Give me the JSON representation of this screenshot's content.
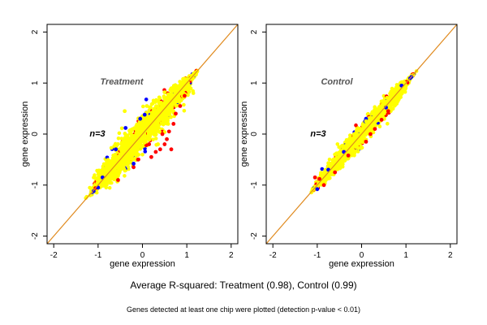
{
  "figure": {
    "caption": "Average R-squared: Treatment (0.98), Control (0.99)",
    "note": "Genes detected at least one chip were plotted (detection p-value < 0.01)"
  },
  "colors": {
    "reference_line": "#e08a1e",
    "point_main": "#ffff00",
    "point_red": "#ff0000",
    "point_blue": "#0000ff",
    "panel_label": "#555555",
    "axis": "#000000"
  },
  "chart_data": [
    {
      "type": "scatter",
      "title": "Treatment",
      "annotation": "n=3",
      "xlabel": "gene expression",
      "ylabel": "gene expression",
      "xlim": [
        -2.15,
        2.15
      ],
      "ylim": [
        -2.15,
        2.15
      ],
      "xticks": [
        -2,
        -1,
        0,
        1,
        2
      ],
      "yticks": [
        -2,
        -1,
        0,
        1,
        2
      ],
      "reference_line": {
        "slope": 1,
        "intercept": 0
      },
      "cloud": {
        "x_range": [
          -1.15,
          1.2
        ],
        "band_width": 0.42,
        "r_squared": 0.98
      },
      "series": [
        {
          "color_key": "point_red",
          "points": [
            [
              0.55,
              -0.1
            ],
            [
              0.6,
              0.05
            ],
            [
              0.4,
              -0.3
            ],
            [
              0.2,
              -0.45
            ],
            [
              0.5,
              -0.2
            ],
            [
              0.7,
              0.2
            ],
            [
              -0.2,
              -0.65
            ],
            [
              0.3,
              -0.35
            ],
            [
              0.65,
              -0.3
            ],
            [
              0.15,
              -0.2
            ],
            [
              -0.55,
              -0.9
            ],
            [
              0.75,
              0.4
            ],
            [
              0.45,
              0.0
            ],
            [
              -0.1,
              -0.5
            ],
            [
              0.85,
              0.55
            ],
            [
              0.95,
              0.75
            ]
          ]
        },
        {
          "color_key": "point_blue",
          "points": [
            [
              -0.38,
              0.12
            ],
            [
              -1.1,
              -1.12
            ],
            [
              -0.9,
              -0.85
            ],
            [
              -0.2,
              -0.58
            ],
            [
              -0.05,
              0.3
            ],
            [
              -0.6,
              -0.3
            ],
            [
              -1.0,
              -1.05
            ],
            [
              0.05,
              0.38
            ]
          ]
        },
        {
          "color_key": "point_main",
          "points": [
            [
              0.58,
              0.2
            ],
            [
              0.1,
              0.55
            ],
            [
              -0.4,
              0.45
            ],
            [
              0.35,
              -0.2
            ],
            [
              0.0,
              0.0
            ],
            [
              0.8,
              0.9
            ],
            [
              -0.7,
              -0.55
            ]
          ]
        }
      ]
    },
    {
      "type": "scatter",
      "title": "Control",
      "annotation": "n=3",
      "xlabel": "gene expression",
      "ylabel": "gene expression",
      "xlim": [
        -2.15,
        2.15
      ],
      "ylim": [
        -2.15,
        2.15
      ],
      "xticks": [
        -2,
        -1,
        0,
        1,
        2
      ],
      "yticks": [
        -2,
        -1,
        0,
        1,
        2
      ],
      "reference_line": {
        "slope": 1,
        "intercept": 0
      },
      "cloud": {
        "x_range": [
          -1.1,
          1.15
        ],
        "band_width": 0.24,
        "r_squared": 0.99
      },
      "series": [
        {
          "color_key": "point_red",
          "points": [
            [
              -1.05,
              -0.85
            ],
            [
              -0.95,
              -0.88
            ],
            [
              -0.6,
              -0.75
            ],
            [
              0.3,
              0.1
            ],
            [
              0.45,
              0.28
            ],
            [
              -0.3,
              -0.42
            ],
            [
              0.6,
              0.45
            ],
            [
              0.1,
              -0.15
            ],
            [
              -0.85,
              -1.0
            ],
            [
              0.2,
              0.0
            ]
          ]
        },
        {
          "color_key": "point_blue",
          "points": [
            [
              -1.0,
              -1.08
            ],
            [
              -0.4,
              -0.35
            ],
            [
              0.1,
              0.3
            ],
            [
              0.55,
              0.52
            ],
            [
              0.08,
              0.25
            ],
            [
              0.9,
              0.95
            ],
            [
              -0.75,
              -0.7
            ]
          ]
        },
        {
          "color_key": "point_main",
          "points": [
            [
              -0.6,
              -0.4
            ],
            [
              0.1,
              0.25
            ],
            [
              0.7,
              0.68
            ],
            [
              -0.2,
              -0.3
            ]
          ]
        }
      ]
    }
  ]
}
